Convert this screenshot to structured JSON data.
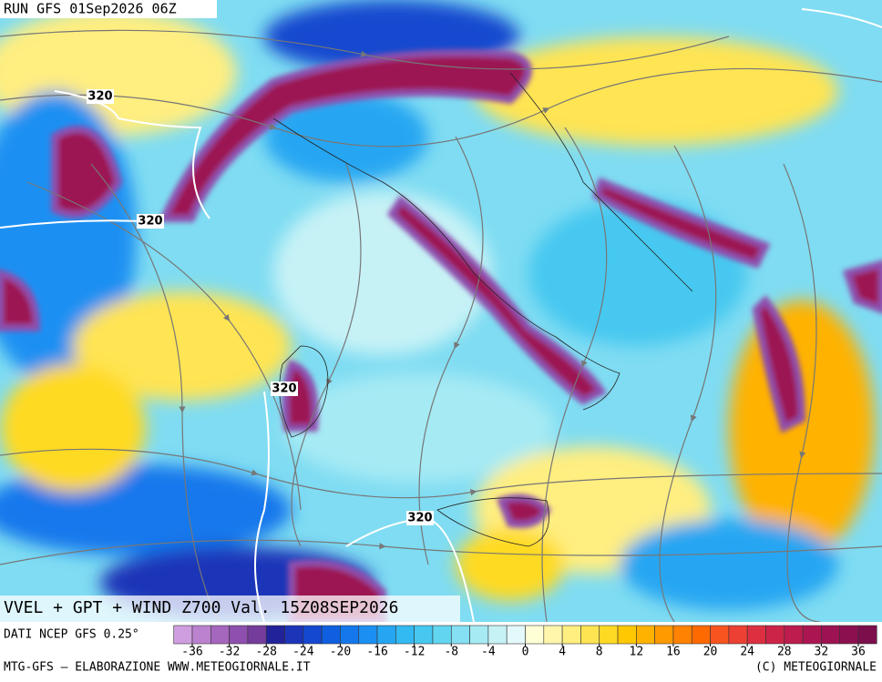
{
  "header": {
    "run": "RUN GFS 01Sep2026 06Z"
  },
  "map": {
    "title": "VVEL + GPT + WIND Z700 Val. 15Z08SEP2026",
    "contour_labels": [
      "320",
      "320",
      "320",
      "320"
    ]
  },
  "colorbar": {
    "source": "DATI NCEP GFS 0.25°",
    "ticks": [
      -36,
      -32,
      -28,
      -24,
      -20,
      -16,
      -12,
      -8,
      -4,
      0,
      4,
      8,
      12,
      16,
      20,
      24,
      28,
      32,
      36
    ],
    "colors": [
      "#cf9ee0",
      "#bb82cf",
      "#a566be",
      "#8e4fae",
      "#763c9c",
      "#22229a",
      "#1b34b8",
      "#1448cf",
      "#0f5fe0",
      "#1478ec",
      "#1c90f2",
      "#26a6f2",
      "#34baf2",
      "#46c8f0",
      "#62d6f0",
      "#84e0f2",
      "#a6eaf4",
      "#c6f2f6",
      "#e4fafa",
      "#ffffd6",
      "#fff6ac",
      "#ffee80",
      "#ffe452",
      "#ffda24",
      "#ffc800",
      "#ffb200",
      "#ff9a00",
      "#ff8200",
      "#ff6a00",
      "#f85420",
      "#ec4034",
      "#dc3040",
      "#cc2448",
      "#bc1c4e",
      "#ac1650",
      "#9c1252",
      "#8c1050",
      "#7c0e4c"
    ]
  },
  "footer": {
    "left": "MTG-GFS — ELABORAZIONE WWW.METEOGIORNALE.IT",
    "right": "(C) METEOGIORNALE"
  }
}
